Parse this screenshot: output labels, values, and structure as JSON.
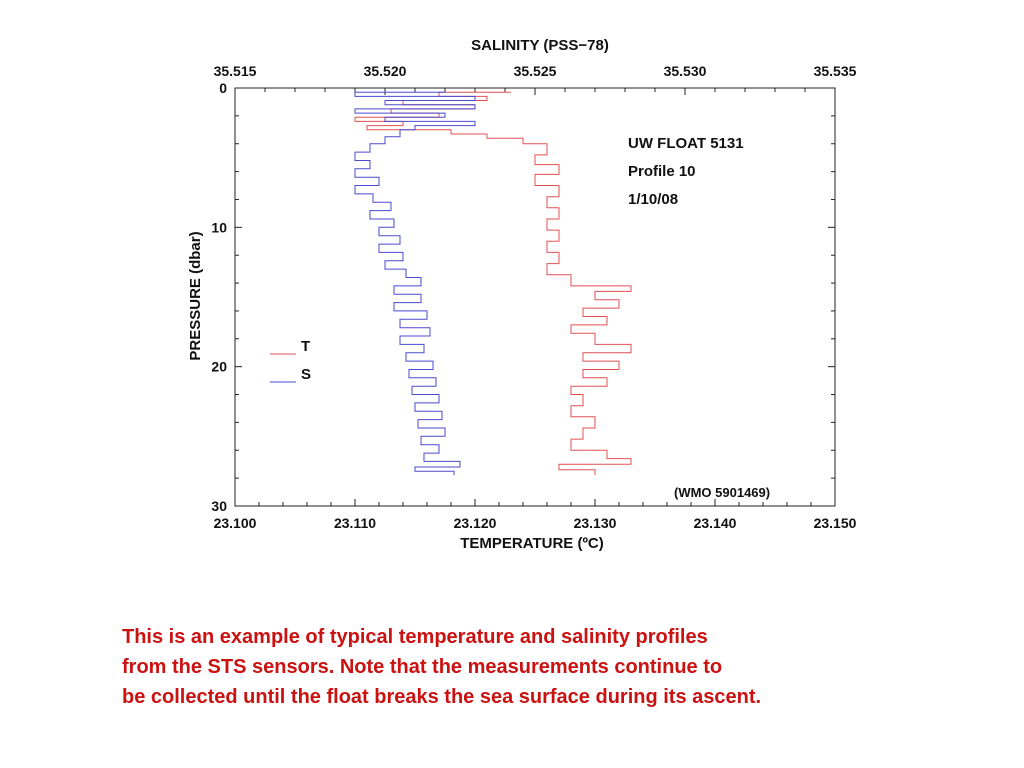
{
  "chart_data": {
    "type": "line",
    "title": "SALINITY (PSS−78)",
    "xlabel": "TEMPERATURE (ºC)",
    "ylabel": "PRESSURE (dbar)",
    "top_axis": {
      "label": "SALINITY (PSS−78)",
      "range": [
        35.515,
        35.535
      ],
      "ticks": [
        "35.515",
        "35.520",
        "35.525",
        "35.530",
        "35.535"
      ]
    },
    "bottom_axis": {
      "label": "TEMPERATURE (ºC)",
      "range": [
        23.1,
        23.15
      ],
      "ticks": [
        "23.100",
        "23.110",
        "23.120",
        "23.130",
        "23.140",
        "23.150"
      ]
    },
    "y_axis": {
      "label": "PRESSURE (dbar)",
      "range": [
        0,
        30
      ],
      "reversed": true,
      "ticks": [
        "0",
        "10",
        "20",
        "30"
      ]
    },
    "grid": false,
    "legend_position": "left-middle",
    "annotations": [
      "UW FLOAT 5131",
      "Profile 10",
      "1/10/08",
      "(WMO 5901469)"
    ],
    "series": [
      {
        "name": "T",
        "color": "#e05050",
        "x_axis": "bottom",
        "units": "ºC",
        "points": [
          [
            23.123,
            0.3
          ],
          [
            23.117,
            0.6
          ],
          [
            23.121,
            0.9
          ],
          [
            23.114,
            1.2
          ],
          [
            23.12,
            1.5
          ],
          [
            23.113,
            1.8
          ],
          [
            23.117,
            2.1
          ],
          [
            23.11,
            2.4
          ],
          [
            23.114,
            2.7
          ],
          [
            23.111,
            3.0
          ],
          [
            23.118,
            3.3
          ],
          [
            23.121,
            3.6
          ],
          [
            23.124,
            4.0
          ],
          [
            23.126,
            4.8
          ],
          [
            23.125,
            5.5
          ],
          [
            23.127,
            6.2
          ],
          [
            23.125,
            7.0
          ],
          [
            23.127,
            7.8
          ],
          [
            23.126,
            8.6
          ],
          [
            23.127,
            9.4
          ],
          [
            23.126,
            10.2
          ],
          [
            23.127,
            11.0
          ],
          [
            23.126,
            11.8
          ],
          [
            23.127,
            12.6
          ],
          [
            23.126,
            13.4
          ],
          [
            23.128,
            14.2
          ],
          [
            23.133,
            14.6
          ],
          [
            23.13,
            15.2
          ],
          [
            23.132,
            15.8
          ],
          [
            23.129,
            16.4
          ],
          [
            23.131,
            17.0
          ],
          [
            23.128,
            17.6
          ],
          [
            23.13,
            18.4
          ],
          [
            23.133,
            19.0
          ],
          [
            23.129,
            19.6
          ],
          [
            23.132,
            20.2
          ],
          [
            23.129,
            20.8
          ],
          [
            23.131,
            21.4
          ],
          [
            23.128,
            22.0
          ],
          [
            23.129,
            22.8
          ],
          [
            23.128,
            23.6
          ],
          [
            23.13,
            24.4
          ],
          [
            23.129,
            25.2
          ],
          [
            23.128,
            26.0
          ],
          [
            23.131,
            26.6
          ],
          [
            23.133,
            27.0
          ],
          [
            23.127,
            27.4
          ],
          [
            23.13,
            27.8
          ]
        ]
      },
      {
        "name": "S",
        "color": "#4a4ad0",
        "x_axis": "top",
        "units": "PSS−78",
        "points": [
          [
            35.522,
            0.3
          ],
          [
            35.519,
            0.6
          ],
          [
            35.523,
            0.9
          ],
          [
            35.52,
            1.2
          ],
          [
            35.523,
            1.5
          ],
          [
            35.519,
            1.8
          ],
          [
            35.522,
            2.1
          ],
          [
            35.52,
            2.4
          ],
          [
            35.523,
            2.7
          ],
          [
            35.521,
            3.0
          ],
          [
            35.5205,
            3.5
          ],
          [
            35.52,
            4.0
          ],
          [
            35.5195,
            4.6
          ],
          [
            35.519,
            5.2
          ],
          [
            35.5195,
            5.8
          ],
          [
            35.519,
            6.4
          ],
          [
            35.5198,
            7.0
          ],
          [
            35.519,
            7.6
          ],
          [
            35.5196,
            8.2
          ],
          [
            35.5202,
            8.8
          ],
          [
            35.5195,
            9.4
          ],
          [
            35.5203,
            10.0
          ],
          [
            35.5198,
            10.6
          ],
          [
            35.5205,
            11.2
          ],
          [
            35.5198,
            11.8
          ],
          [
            35.5206,
            12.4
          ],
          [
            35.52,
            13.0
          ],
          [
            35.5207,
            13.6
          ],
          [
            35.5212,
            14.2
          ],
          [
            35.5203,
            14.8
          ],
          [
            35.5212,
            15.4
          ],
          [
            35.5203,
            16.0
          ],
          [
            35.5214,
            16.6
          ],
          [
            35.5205,
            17.2
          ],
          [
            35.5215,
            17.8
          ],
          [
            35.5205,
            18.4
          ],
          [
            35.5213,
            19.0
          ],
          [
            35.5207,
            19.6
          ],
          [
            35.5216,
            20.2
          ],
          [
            35.5208,
            20.8
          ],
          [
            35.5217,
            21.4
          ],
          [
            35.5209,
            22.0
          ],
          [
            35.5218,
            22.6
          ],
          [
            35.521,
            23.2
          ],
          [
            35.5219,
            23.8
          ],
          [
            35.5211,
            24.4
          ],
          [
            35.522,
            25.0
          ],
          [
            35.5212,
            25.6
          ],
          [
            35.5218,
            26.2
          ],
          [
            35.5213,
            26.8
          ],
          [
            35.5225,
            27.2
          ],
          [
            35.521,
            27.5
          ],
          [
            35.5223,
            27.8
          ]
        ]
      }
    ]
  },
  "caption": {
    "line1": "This is an example of typical temperature and salinity profiles",
    "line2": "from the STS sensors.  Note that the measurements continue to",
    "line3": "be collected until the float breaks the sea surface during its ascent."
  }
}
